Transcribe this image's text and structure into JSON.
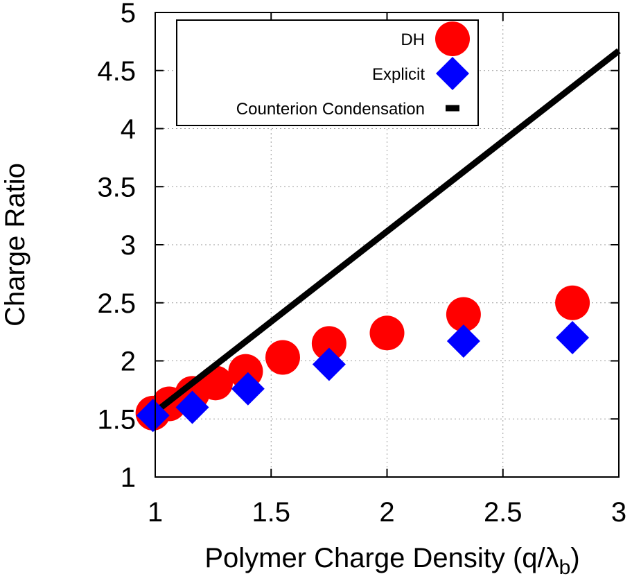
{
  "chart_data": {
    "type": "scatter",
    "title": "",
    "xlabel_main": "Polymer Charge Density (q/",
    "xlabel_symbol": "λ",
    "xlabel_sub": "b",
    "xlabel_close": ")",
    "ylabel": "Charge Ratio",
    "xlim": [
      1,
      3
    ],
    "ylim": [
      1,
      5
    ],
    "x_ticks": [
      1,
      1.5,
      2,
      2.5,
      3
    ],
    "x_tick_labels": [
      "1",
      "1.5",
      "2",
      "2.5",
      "3"
    ],
    "y_ticks": [
      1,
      1.5,
      2,
      2.5,
      3,
      3.5,
      4,
      4.5,
      5
    ],
    "y_tick_labels": [
      "1",
      "1.5",
      "2",
      "2.5",
      "3",
      "3.5",
      "4",
      "4.5",
      "5"
    ],
    "grid": true,
    "legend_position": "top",
    "series": [
      {
        "name": "DH",
        "marker": "circle",
        "color": "#ff0000",
        "points": [
          [
            0.99,
            1.55
          ],
          [
            1.06,
            1.63
          ],
          [
            1.16,
            1.72
          ],
          [
            1.26,
            1.81
          ],
          [
            1.39,
            1.91
          ],
          [
            1.55,
            2.03
          ],
          [
            1.75,
            2.15
          ],
          [
            2.0,
            2.24
          ],
          [
            2.33,
            2.4
          ],
          [
            2.8,
            2.5
          ]
        ]
      },
      {
        "name": "Explicit",
        "marker": "diamond",
        "color": "#0000ff",
        "points": [
          [
            0.99,
            1.53
          ],
          [
            1.16,
            1.6
          ],
          [
            1.4,
            1.76
          ],
          [
            1.75,
            1.97
          ],
          [
            2.33,
            2.17
          ],
          [
            2.8,
            2.2
          ]
        ]
      },
      {
        "name": "Counterion Condensation",
        "marker": "line",
        "color": "#000000",
        "points": [
          [
            1.0,
            1.56
          ],
          [
            3.0,
            4.67
          ]
        ]
      }
    ]
  }
}
